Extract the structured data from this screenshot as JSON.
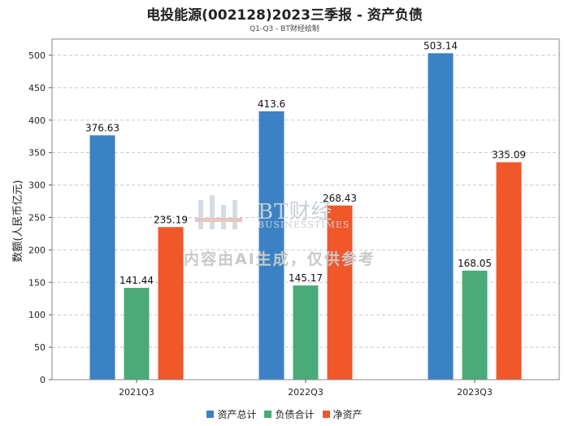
{
  "chart_data": {
    "type": "bar",
    "title": "电投能源(002128)2023三季报 - 资产负债",
    "subtitle": "Q1-Q3 - BT财经绘制",
    "ylabel": "数额(人民币亿元)",
    "xlabel": "",
    "ylim": [
      0,
      525
    ],
    "yticks": [
      0,
      50,
      100,
      150,
      200,
      250,
      300,
      350,
      400,
      450,
      500
    ],
    "grid": true,
    "legend_position": "bottom",
    "categories": [
      "2021Q3",
      "2022Q3",
      "2023Q3"
    ],
    "series": [
      {
        "name": "资产总计",
        "color": "#3b82c4",
        "values": [
          376.63,
          413.6,
          503.14
        ],
        "labels": [
          "376.63",
          "413.6",
          "503.14"
        ]
      },
      {
        "name": "负债合计",
        "color": "#4aab78",
        "values": [
          141.44,
          145.17,
          168.05
        ],
        "labels": [
          "141.44",
          "145.17",
          "168.05"
        ]
      },
      {
        "name": "净资产",
        "color": "#f0572b",
        "values": [
          235.19,
          268.43,
          335.09
        ],
        "labels": [
          "235.19",
          "268.43",
          "335.09"
        ]
      }
    ]
  },
  "watermark": {
    "logo_text": "BT财经",
    "logo_sub": "BUSINESSTIMES",
    "text": "内容由AI生成，仅供参考"
  }
}
